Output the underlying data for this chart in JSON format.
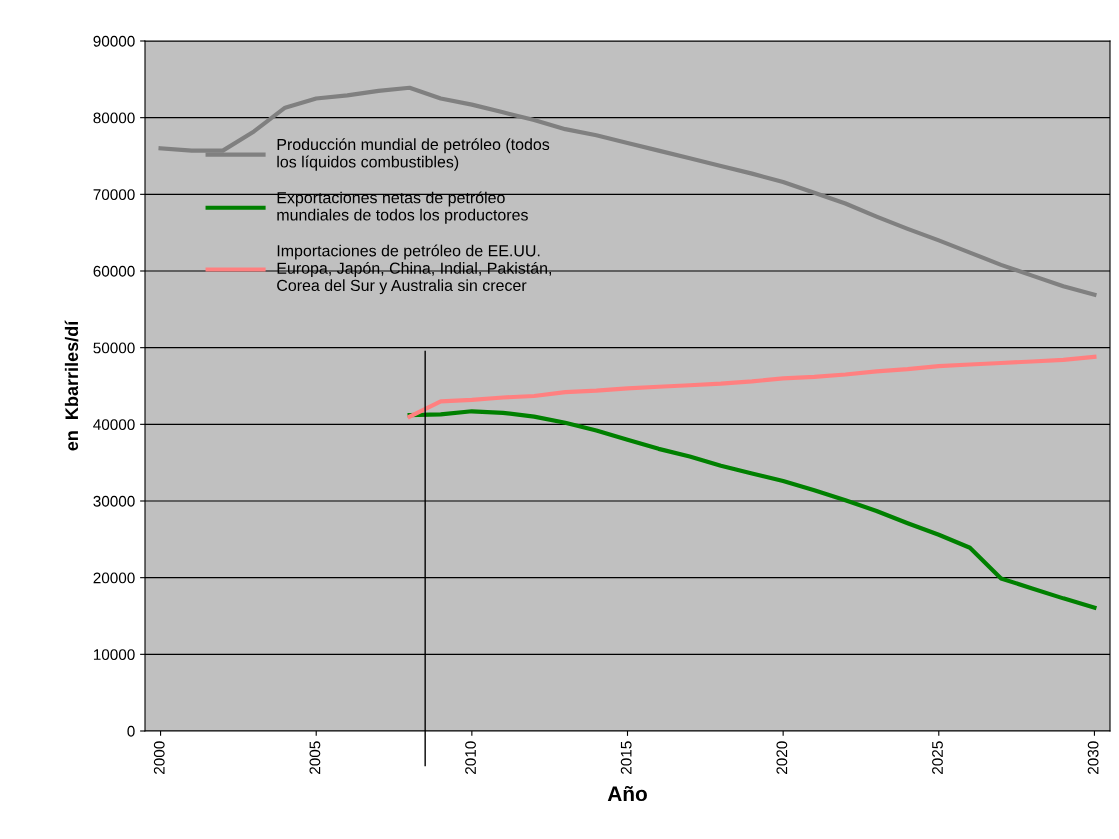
{
  "chart_data": {
    "type": "line",
    "xlabel": "Año",
    "ylabel": "en  Kbarriles/dí",
    "x": [
      2000,
      2001,
      2002,
      2003,
      2004,
      2005,
      2006,
      2007,
      2008,
      2009,
      2010,
      2011,
      2012,
      2013,
      2014,
      2015,
      2016,
      2017,
      2018,
      2019,
      2020,
      2021,
      2022,
      2023,
      2024,
      2025,
      2026,
      2027,
      2028,
      2029,
      2030
    ],
    "xlim": [
      1999.5,
      2030.5
    ],
    "xticks": [
      {
        "value": 2000,
        "label": "2000"
      },
      {
        "value": 2005,
        "label": "2005"
      },
      {
        "value": 2010,
        "label": "2010"
      },
      {
        "value": 2015,
        "label": "2015"
      },
      {
        "value": 2020,
        "label": "2020"
      },
      {
        "value": 2025,
        "label": "2025"
      },
      {
        "value": 2030,
        "label": "2030"
      }
    ],
    "ylim": [
      0,
      90000
    ],
    "yticks": [
      0,
      10000,
      20000,
      30000,
      40000,
      50000,
      60000,
      70000,
      80000,
      90000
    ],
    "grid": "y",
    "legend": "top left",
    "marker": "none",
    "line_style": "solid",
    "series": [
      {
        "name": "Producción mundial de petróleo (todos\nlos líquidos combustibles)",
        "color": "#808080",
        "values": [
          76000,
          75700,
          75700,
          78200,
          81300,
          82500,
          82900,
          83500,
          83900,
          82500,
          81700,
          80700,
          79700,
          78500,
          77700,
          76700,
          75700,
          74700,
          73700,
          72700,
          71600,
          70200,
          68800,
          67100,
          65500,
          64000,
          62400,
          60800,
          59400,
          58000,
          56900
        ]
      },
      {
        "name": "Exportaciones netas de petróleo\nmundiales de todos los productores",
        "color": "#008000",
        "values": [
          null,
          null,
          null,
          null,
          null,
          null,
          null,
          null,
          41200,
          41300,
          41700,
          41500,
          41000,
          40200,
          39200,
          38000,
          36800,
          35800,
          34600,
          33600,
          32600,
          31400,
          30100,
          28700,
          27100,
          25600,
          23900,
          19900,
          18600,
          17300,
          16100
        ]
      },
      {
        "name": "Importaciones de petróleo de EE.UU.\nEuropa, Japón, China, Indial, Pakistán,\nCorea del Sur y Australia sin crecer",
        "color": "#ff8080",
        "values": [
          null,
          null,
          null,
          null,
          null,
          null,
          null,
          null,
          41000,
          43000,
          43200,
          43500,
          43700,
          44200,
          44400,
          44700,
          44900,
          45100,
          45300,
          45600,
          46000,
          46200,
          46500,
          46900,
          47200,
          47600,
          47800,
          48000,
          48200,
          48400,
          48800
        ]
      }
    ],
    "ref_lines": [
      {
        "axis": "x",
        "value": 2008.5,
        "color": "#000000"
      }
    ]
  }
}
